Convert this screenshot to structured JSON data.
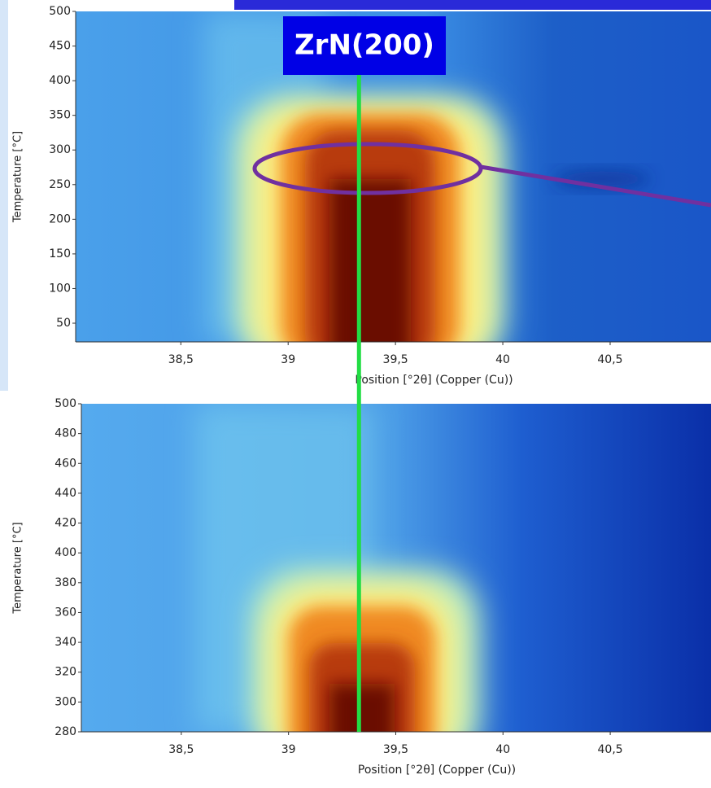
{
  "chart_data": [
    {
      "type": "heatmap",
      "annotation": "ZrN(200)",
      "x_label": "Position [°2θ] (Copper (Cu))",
      "y_label": "Temperature [°C]",
      "xlim": [
        38.01,
        40.97
      ],
      "xticks": [
        {
          "value": 38.5,
          "label": "38,5"
        },
        39,
        {
          "value": 39.5,
          "label": "39,5"
        },
        40,
        {
          "value": 40.5,
          "label": "40,5"
        }
      ],
      "ylim": [
        23,
        500
      ],
      "yticks": [
        50,
        100,
        150,
        200,
        250,
        300,
        350,
        400,
        450,
        500
      ],
      "marker_x": 39.33,
      "marker_color": "#22dd44"
    },
    {
      "type": "heatmap",
      "x_label": "Position [°2θ] (Copper (Cu))",
      "y_label": "Temperature [°C]",
      "xlim": [
        38.034,
        40.97
      ],
      "xticks": [
        {
          "value": 38.5,
          "label": "38,5"
        },
        39,
        {
          "value": 39.5,
          "label": "39,5"
        },
        40,
        {
          "value": 40.5,
          "label": "40,5"
        }
      ],
      "ylim": [
        280,
        500
      ],
      "yticks": [
        280,
        300,
        320,
        340,
        360,
        380,
        400,
        420,
        440,
        460,
        480,
        500
      ]
    }
  ]
}
